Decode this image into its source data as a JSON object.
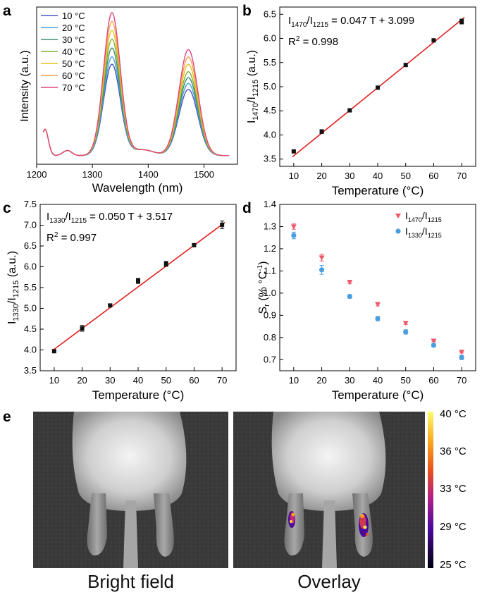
{
  "panels": {
    "a": {
      "letter": "a"
    },
    "b": {
      "letter": "b"
    },
    "c": {
      "letter": "c"
    },
    "d": {
      "letter": "d"
    },
    "e": {
      "letter": "e"
    }
  },
  "chart_data": [
    {
      "panel": "a",
      "type": "line",
      "xlabel": "Wavelength (nm)",
      "ylabel": "Intensity (a.u.)",
      "xlim": [
        1200,
        1560
      ],
      "xticks": [
        1200,
        1300,
        1400,
        1500
      ],
      "legend_placement": "top-left",
      "peaks": {
        "p1_nm": 1215,
        "p2_nm": 1335,
        "p3_nm": 1472
      },
      "series": [
        {
          "name": "10 °C",
          "color": "#4a55c4",
          "peak1": 0.18,
          "peak2": 0.62,
          "peak3": 0.45
        },
        {
          "name": "20 °C",
          "color": "#4aa0d8",
          "peak1": 0.18,
          "peak2": 0.67,
          "peak3": 0.49
        },
        {
          "name": "30 °C",
          "color": "#3e8f6e",
          "peak1": 0.18,
          "peak2": 0.73,
          "peak3": 0.53
        },
        {
          "name": "40 °C",
          "color": "#7bb23a",
          "peak1": 0.18,
          "peak2": 0.79,
          "peak3": 0.57
        },
        {
          "name": "50 °C",
          "color": "#e6c21f",
          "peak1": 0.18,
          "peak2": 0.85,
          "peak3": 0.62
        },
        {
          "name": "60 °C",
          "color": "#f0a24e",
          "peak1": 0.18,
          "peak2": 0.91,
          "peak3": 0.67
        },
        {
          "name": "70 °C",
          "color": "#e0457a",
          "peak1": 0.18,
          "peak2": 0.97,
          "peak3": 0.72
        }
      ]
    },
    {
      "panel": "b",
      "type": "scatter",
      "xlabel": "Temperature (°C)",
      "ylabel_main": "I",
      "ylabel_sub1": "1470",
      "ylabel_sep": "/I",
      "ylabel_sub2": "1215",
      "ylabel_unit": " (a.u.)",
      "xlim": [
        5,
        75
      ],
      "ylim": [
        3.35,
        6.65
      ],
      "xticks": [
        10,
        20,
        30,
        40,
        50,
        60,
        70
      ],
      "yticks": [
        3.5,
        4.0,
        4.5,
        5.0,
        5.5,
        6.0,
        6.5
      ],
      "x": [
        10,
        20,
        30,
        40,
        50,
        60,
        70
      ],
      "y": [
        3.66,
        4.07,
        4.51,
        4.98,
        5.45,
        5.96,
        6.35
      ],
      "err": [
        0.02,
        0.04,
        0.03,
        0.03,
        0.03,
        0.02,
        0.05
      ],
      "fit": {
        "slope": 0.047,
        "intercept": 3.099,
        "color": "#e02020"
      },
      "annot_main": "I",
      "annot_sub1": "1470",
      "annot_sep": "/I",
      "annot_sub2": "1215",
      "annot_eq": " = 0.047 T + 3.099",
      "r2_label": "R",
      "r2_sup": "2",
      "r2_value": " = 0.998"
    },
    {
      "panel": "c",
      "type": "scatter",
      "xlabel": "Temperature (°C)",
      "ylabel_main": "I",
      "ylabel_sub1": "1330",
      "ylabel_sep": "/I",
      "ylabel_sub2": "1215",
      "ylabel_unit": " (a.u.)",
      "xlim": [
        5,
        75
      ],
      "ylim": [
        3.5,
        7.5
      ],
      "xticks": [
        10,
        20,
        30,
        40,
        50,
        60,
        70
      ],
      "yticks": [
        3.5,
        4.0,
        4.5,
        5.0,
        5.5,
        6.0,
        6.5,
        7.0,
        7.5
      ],
      "x": [
        10,
        20,
        30,
        40,
        50,
        60,
        70
      ],
      "y": [
        3.97,
        4.52,
        5.07,
        5.66,
        6.07,
        6.52,
        7.01
      ],
      "err": [
        0.03,
        0.07,
        0.03,
        0.06,
        0.06,
        0.03,
        0.09
      ],
      "fit": {
        "slope": 0.05,
        "intercept": 3.517,
        "color": "#e02020"
      },
      "annot_main": "I",
      "annot_sub1": "1330",
      "annot_sep": "/I",
      "annot_sub2": "1215",
      "annot_eq": " = 0.050 T + 3.517",
      "r2_label": "R",
      "r2_sup": "2",
      "r2_value": " = 0.997"
    },
    {
      "panel": "d",
      "type": "scatter",
      "xlabel": "Temperature (°C)",
      "ylabel_main": "S",
      "ylabel_sub": "r",
      "ylabel_unit": " (% °C",
      "ylabel_sup": "-1",
      "ylabel_close": ")",
      "xlim": [
        5,
        75
      ],
      "ylim": [
        0.65,
        1.4
      ],
      "xticks": [
        10,
        20,
        30,
        40,
        50,
        60,
        70
      ],
      "yticks": [
        0.7,
        0.8,
        0.9,
        1.0,
        1.1,
        1.2,
        1.3,
        1.4
      ],
      "legend_placement": "top-right",
      "series": [
        {
          "name_main": "I",
          "name_sub1": "1470",
          "name_sep": "/I",
          "name_sub2": "1215",
          "marker": "triangle-down",
          "color": "#f0566a",
          "x": [
            10,
            20,
            30,
            40,
            50,
            60,
            70
          ],
          "y": [
            1.3,
            1.16,
            1.05,
            0.95,
            0.865,
            0.785,
            0.735
          ],
          "err": [
            0.012,
            0.015,
            0.008,
            0.008,
            0.006,
            0.004,
            0.005
          ]
        },
        {
          "name_main": "I",
          "name_sub1": "1330",
          "name_sep": "/I",
          "name_sub2": "1215",
          "marker": "circle",
          "color": "#4a9ee0",
          "x": [
            10,
            20,
            30,
            40,
            50,
            60,
            70
          ],
          "y": [
            1.26,
            1.105,
            0.985,
            0.885,
            0.825,
            0.765,
            0.71
          ],
          "err": [
            0.015,
            0.02,
            0.008,
            0.01,
            0.01,
            0.008,
            0.01
          ]
        }
      ]
    }
  ],
  "imaging": {
    "left_caption": "Bright field",
    "right_caption": "Overlay",
    "colorbar_ticks": [
      "40 °C",
      "36 °C",
      "33 °C",
      "29 °C",
      "25 °C"
    ]
  }
}
